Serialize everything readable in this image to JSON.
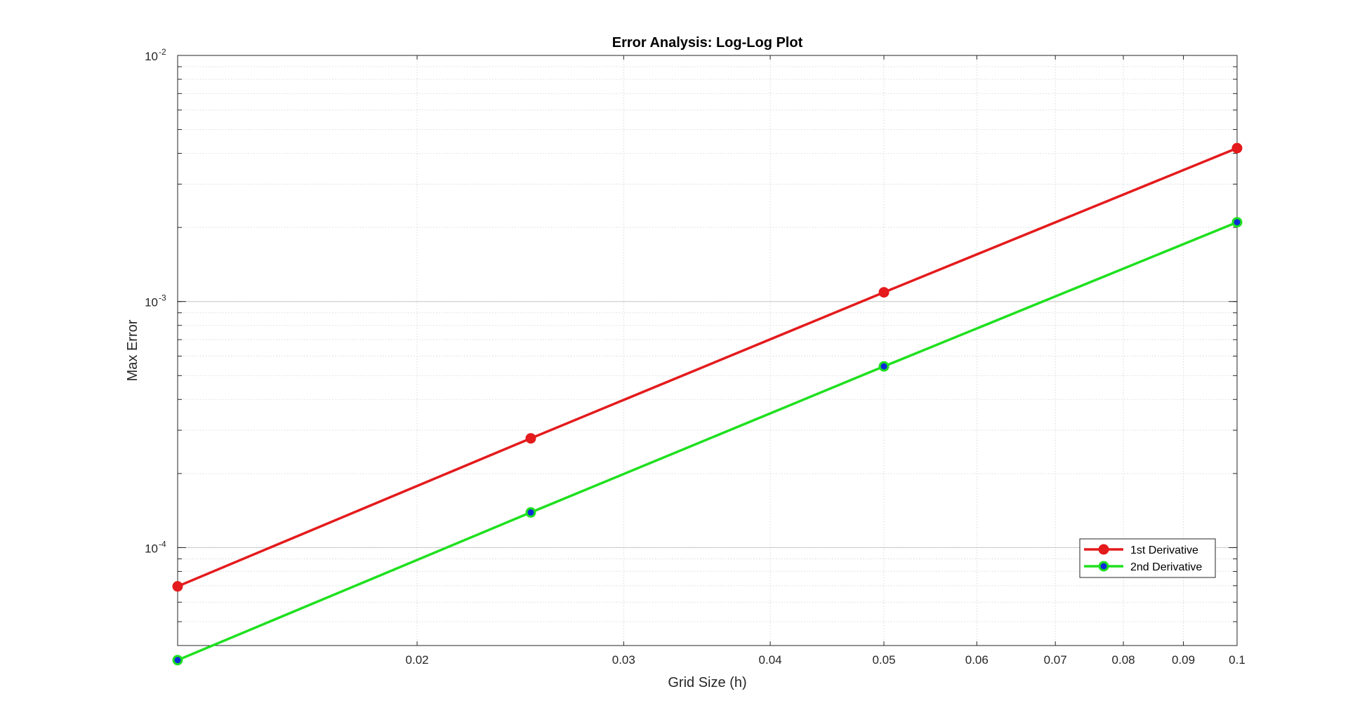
{
  "chart_data": {
    "type": "line",
    "title": "Error Analysis: Log-Log Plot",
    "xlabel": "Grid Size (h)",
    "ylabel": "Max Error",
    "xscale": "log",
    "yscale": "log",
    "xlim": [
      0.0125,
      0.1
    ],
    "ylim": [
      4e-05,
      0.01
    ],
    "grid": true,
    "minor_grid": true,
    "legend_location": "bottom-right",
    "x_ticks": [
      {
        "value": 0.02,
        "label": "0.02"
      },
      {
        "value": 0.03,
        "label": "0.03"
      },
      {
        "value": 0.04,
        "label": "0.04"
      },
      {
        "value": 0.05,
        "label": "0.05"
      },
      {
        "value": 0.06,
        "label": "0.06"
      },
      {
        "value": 0.07,
        "label": "0.07"
      },
      {
        "value": 0.08,
        "label": "0.08"
      },
      {
        "value": 0.09,
        "label": "0.09"
      },
      {
        "value": 0.1,
        "label": "0.1"
      }
    ],
    "y_ticks": [
      {
        "value": 0.0001,
        "base": "10",
        "exponent": "-4"
      },
      {
        "value": 0.001,
        "base": "10",
        "exponent": "-3"
      },
      {
        "value": 0.01,
        "base": "10",
        "exponent": "-2"
      }
    ],
    "series": [
      {
        "name": "1st Derivative",
        "color": "#e41a1c",
        "marker_face": "#e41a1c",
        "marker_edge": "#e41a1c",
        "x": [
          0.0125,
          0.025,
          0.05,
          0.1
        ],
        "y": [
          6.96e-05,
          0.000278,
          0.00109,
          0.0042
        ]
      },
      {
        "name": "2nd Derivative",
        "color": "#1fe01f",
        "marker_face": "#0b2bd8",
        "marker_edge": "#1fe01f",
        "x": [
          0.0125,
          0.025,
          0.05,
          0.1
        ],
        "y": [
          3.49e-05,
          0.000139,
          0.000545,
          0.0021
        ]
      }
    ]
  }
}
